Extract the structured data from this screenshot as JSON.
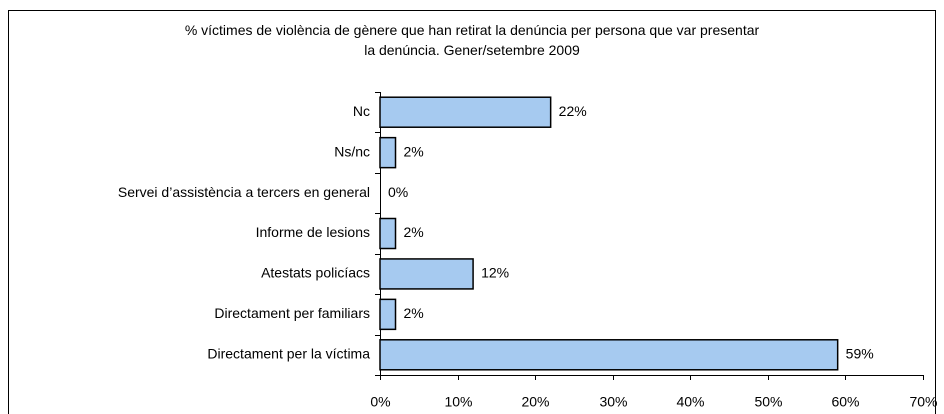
{
  "chart_data": {
    "type": "bar",
    "orientation": "horizontal",
    "title": "% víctimes de violència de gènere que han retirat la denúncia per persona que var presentar\nla denúncia. Gener/setembre 2009",
    "categories": [
      "Nc",
      "Ns/nc",
      "Servei d’assistència a tercers en general",
      "Informe de lesions",
      "Atestats policíacs",
      "Directament per familiars",
      "Directament per la víctima"
    ],
    "values": [
      22,
      2,
      0,
      2,
      12,
      2,
      59
    ],
    "value_labels": [
      "22%",
      "2%",
      "0%",
      "2%",
      "12%",
      "2%",
      "59%"
    ],
    "color": "#a6caf0",
    "xlim": [
      0,
      70
    ],
    "xticks": [
      {
        "value": 0,
        "label": "0%"
      },
      {
        "value": 10,
        "label": "10%"
      },
      {
        "value": 20,
        "label": "20%"
      },
      {
        "value": 30,
        "label": "30%"
      },
      {
        "value": 40,
        "label": "40%"
      },
      {
        "value": 50,
        "label": "50%"
      },
      {
        "value": 60,
        "label": "60%"
      },
      {
        "value": 70,
        "label": "70%"
      }
    ],
    "grid": false
  }
}
